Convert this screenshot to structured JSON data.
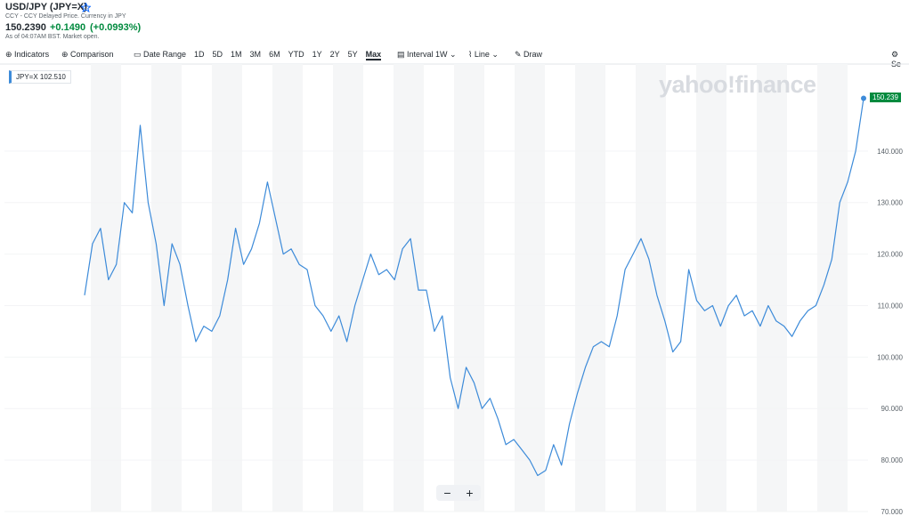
{
  "header": {
    "title": "USD/JPY (JPY=X)",
    "subtitle": "CCY - CCY Delayed Price. Currency in JPY",
    "price": "150.2390",
    "change": "+0.1490",
    "change_percent": "(+0.0993%)",
    "market_status": "As of 04:07AM BST. Market open."
  },
  "toolbar": {
    "indicators": "Indicators",
    "comparison": "Comparison",
    "date_range": "Date Range",
    "ranges": [
      "1D",
      "5D",
      "1M",
      "3M",
      "6M",
      "YTD",
      "1Y",
      "2Y",
      "5Y",
      "Max"
    ],
    "interval": "Interval",
    "interval_value": "1W",
    "chart_type": "Line",
    "draw": "Draw",
    "settings": "Se"
  },
  "chart_data": {
    "type": "line",
    "watermark": "yahoo!finance",
    "legend_value": "102.510",
    "current_label": "150.239",
    "series": [
      {
        "name": "JPY=X",
        "color": "#3d8bd9",
        "values": [
          112,
          122,
          125,
          115,
          118,
          130,
          128,
          145,
          130,
          122,
          110,
          122,
          118,
          110,
          103,
          106,
          105,
          108,
          115,
          125,
          118,
          121,
          126,
          134,
          127,
          120,
          121,
          118,
          117,
          110,
          108,
          105,
          108,
          103,
          110,
          115,
          120,
          116,
          117,
          115,
          121,
          123,
          113,
          113,
          105,
          108,
          96,
          90,
          98,
          95,
          90,
          92,
          88,
          83,
          84,
          82,
          80,
          77,
          78,
          83,
          79,
          87,
          93,
          98,
          102,
          103,
          102,
          108,
          117,
          120,
          123,
          119,
          112,
          107,
          101,
          103,
          117,
          111,
          109,
          110,
          106,
          110,
          112,
          108,
          109,
          106,
          110,
          107,
          106,
          104,
          107,
          109,
          110,
          114,
          119,
          130,
          134,
          140,
          150.239
        ]
      }
    ],
    "ylim": [
      70,
      156.9
    ],
    "yticks": [
      {
        "value": 70,
        "label": "70.000"
      },
      {
        "value": 80,
        "label": "80.000"
      },
      {
        "value": 90,
        "label": "90.000"
      },
      {
        "value": 100,
        "label": "100.000"
      },
      {
        "value": 110,
        "label": "110.000"
      },
      {
        "value": 120,
        "label": "120.000"
      },
      {
        "value": 130,
        "label": "130.000"
      },
      {
        "value": 140,
        "label": "140.000"
      }
    ],
    "grid": true
  }
}
